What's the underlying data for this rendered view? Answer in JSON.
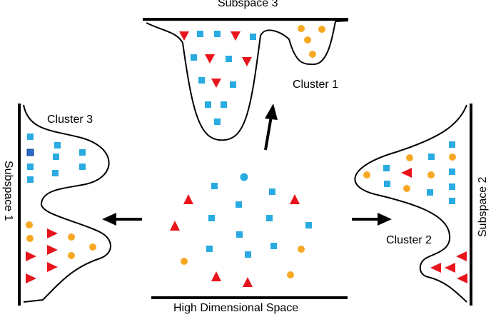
{
  "labels": {
    "subspace_top": "Subspace 3",
    "subspace_left": "Subspace 1",
    "subspace_right": "Subspace 2",
    "cluster_top": "Cluster 1",
    "cluster_left": "Cluster 3",
    "cluster_right": "Cluster 2",
    "base": "High Dimensional Space"
  },
  "colors": {
    "square": "#29abe2",
    "circle": "#f7a823",
    "triangle": "#e8141b",
    "stroke": "#000000"
  }
}
